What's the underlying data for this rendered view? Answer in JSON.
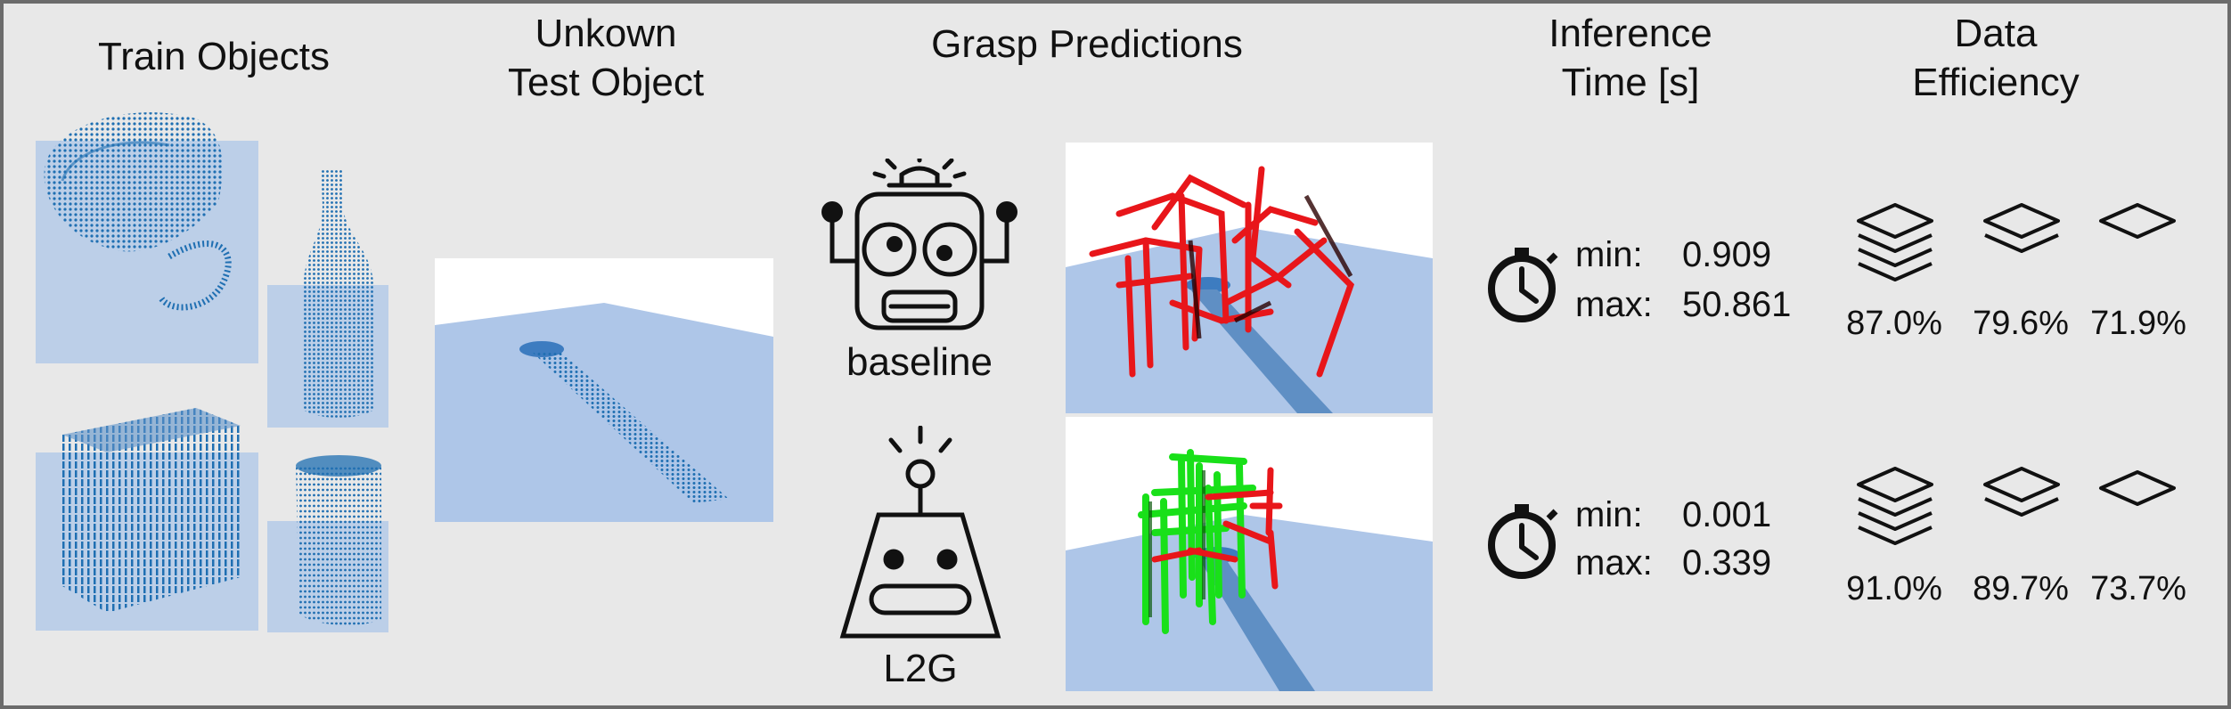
{
  "headers": {
    "train_objects": "Train Objects",
    "unknown_test_line1": "Unkown",
    "unknown_test_line2": "Test Object",
    "grasp_predictions": "Grasp Predictions",
    "inference_line1": "Inference",
    "inference_line2": "Time [s]",
    "data_line1": "Data",
    "data_line2": "Efficiency"
  },
  "methods": [
    {
      "name": "baseline",
      "min_label": "min:",
      "min_value": "0.909",
      "max_label": "max:",
      "max_value": "50.861",
      "efficiency": [
        "87.0%",
        "79.6%",
        "71.9%"
      ]
    },
    {
      "name": "L2G",
      "min_label": "min:",
      "min_value": "0.001",
      "max_label": "max:",
      "max_value": "0.339",
      "efficiency": [
        "91.0%",
        "89.7%",
        "73.7%"
      ]
    }
  ],
  "icons": {
    "baseline_robot": "robot-icon",
    "l2g_robot": "simple-robot-icon",
    "timer": "stopwatch-icon",
    "data_full": "layers-stack-icon",
    "data_half": "layers-icon",
    "data_single": "single-layer-icon"
  },
  "colors": {
    "background": "#e8e8e8",
    "border": "#6b6b6b",
    "plane": "#aec6e8",
    "points": "#1f6fb2",
    "grasp_bad": "#e8161a",
    "grasp_good": "#19e019"
  }
}
